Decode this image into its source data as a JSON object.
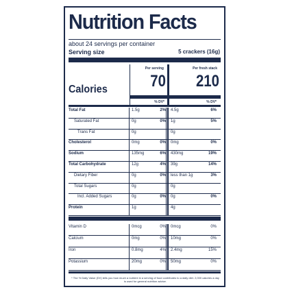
{
  "label": {
    "title": "Nutrition Facts",
    "servings": "about 24 servings per container",
    "serving_size_label": "Serving size",
    "serving_size_value": "5 crackers (16g)",
    "col1_header": "Per serving",
    "col2_header": "Per fresh stack",
    "calories_label": "Calories",
    "calories_col1": "70",
    "calories_col2": "210",
    "dv_header": "% DV*",
    "footnote": "* The % Daily Value (DV) tells you how much a nutrient in a serving of food contributes to a daily diet. 2,000 calories a day is used for general nutrition advice.",
    "nutrients": [
      {
        "name": "Total Fat",
        "style": "b",
        "a": "1.5g",
        "ap": "2%",
        "b": "4.5g",
        "bp": "6%"
      },
      {
        "name": "Saturated Fat",
        "style": "i1",
        "a": "0g",
        "ap": "0%",
        "b": "1g",
        "bp": "5%"
      },
      {
        "name": "Trans Fat",
        "style": "i2",
        "a": "0g",
        "ap": "",
        "b": "0g",
        "bp": ""
      },
      {
        "name": "Cholesterol",
        "style": "b",
        "a": "0mg",
        "ap": "0%",
        "b": "0mg",
        "bp": "0%"
      },
      {
        "name": "Sodium",
        "style": "b",
        "a": "135mg",
        "ap": "6%",
        "b": "430mg",
        "bp": "19%"
      },
      {
        "name": "Total Carbohydrate",
        "style": "b",
        "a": "12g",
        "ap": "4%",
        "b": "39g",
        "bp": "14%"
      },
      {
        "name": "Dietary Fiber",
        "style": "i1",
        "a": "0g",
        "ap": "0%",
        "b": "less than 1g",
        "bp": "3%"
      },
      {
        "name": "Total Sugars",
        "style": "i1",
        "a": "0g",
        "ap": "",
        "b": "0g",
        "bp": ""
      },
      {
        "name": "Incl. Added Sugars",
        "style": "i2",
        "a": "0g",
        "ap": "0%",
        "b": "0g",
        "bp": "0%"
      },
      {
        "name": "Protein",
        "style": "b",
        "a": "1g",
        "ap": "",
        "b": "4g",
        "bp": ""
      }
    ],
    "vitamins": [
      {
        "name": "Vitamin D",
        "a": "0mcg",
        "ap": "0%",
        "b": "0mcg",
        "bp": "0%"
      },
      {
        "name": "Calcium",
        "a": "0mg",
        "ap": "0%",
        "b": "10mg",
        "bp": "0%"
      },
      {
        "name": "Iron",
        "a": "0.8mg",
        "ap": "4%",
        "b": "2.4mg",
        "bp": "15%"
      },
      {
        "name": "Potassium",
        "a": "20mg",
        "ap": "0%",
        "b": "50mg",
        "bp": "0%"
      }
    ]
  }
}
